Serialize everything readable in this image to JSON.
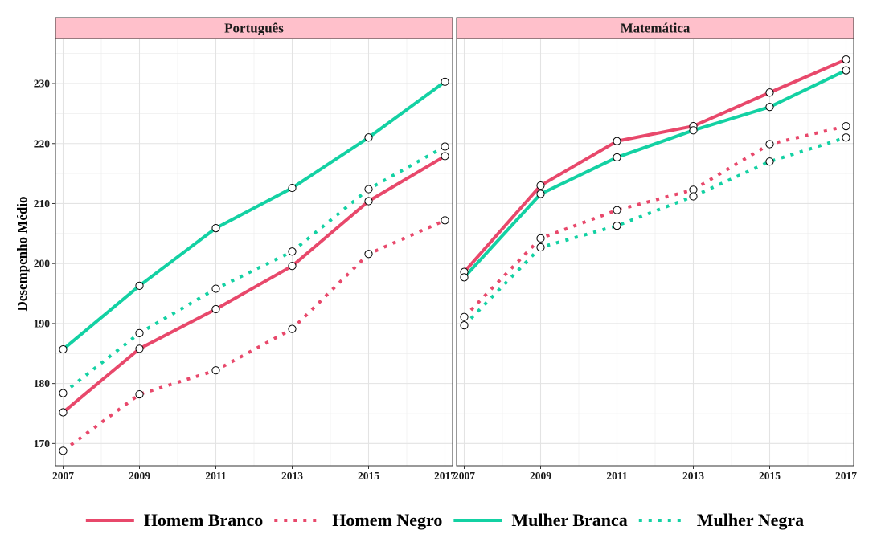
{
  "chart_data": {
    "type": "line",
    "ylabel": "Desempenho Médio",
    "xlabel": "",
    "x": [
      2007,
      2009,
      2011,
      2013,
      2015,
      2017
    ],
    "x_ticks": [
      "2007",
      "2009",
      "2011",
      "2013",
      "2015",
      "2017"
    ],
    "y_ticks": [
      "170",
      "180",
      "190",
      "200",
      "210",
      "220",
      "230"
    ],
    "xlim": [
      2006.8,
      2017.2
    ],
    "ylim": [
      166.3,
      237.5
    ],
    "grid": true,
    "legend_position": "bottom",
    "panels": [
      {
        "title": "Português",
        "series": [
          {
            "name": "Homem Branco",
            "values": [
              175.2,
              185.8,
              192.4,
              199.6,
              210.4,
              217.9
            ]
          },
          {
            "name": "Homem Negro",
            "values": [
              168.8,
              178.2,
              182.2,
              189.1,
              201.6,
              207.2
            ]
          },
          {
            "name": "Mulher Branca",
            "values": [
              185.7,
              196.3,
              205.9,
              212.6,
              221.0,
              230.3
            ]
          },
          {
            "name": "Mulher Negra",
            "values": [
              178.4,
              188.4,
              195.8,
              202.0,
              212.4,
              219.5
            ]
          }
        ]
      },
      {
        "title": "Matemática",
        "series": [
          {
            "name": "Homem Branco",
            "values": [
              198.6,
              213.0,
              220.4,
              222.9,
              228.5,
              234.0
            ]
          },
          {
            "name": "Homem Negro",
            "values": [
              191.1,
              204.2,
              208.9,
              212.3,
              219.9,
              222.9
            ]
          },
          {
            "name": "Mulher Branca",
            "values": [
              197.7,
              211.6,
              217.7,
              222.2,
              226.1,
              232.2
            ]
          },
          {
            "name": "Mulher Negra",
            "values": [
              189.7,
              202.7,
              206.3,
              211.2,
              217.0,
              221.0
            ]
          }
        ]
      }
    ],
    "series_styles": [
      {
        "name": "Homem Branco",
        "color": "#e8486b",
        "dash": "solid"
      },
      {
        "name": "Homem Negro",
        "color": "#e8486b",
        "dash": "dotted"
      },
      {
        "name": "Mulher Branca",
        "color": "#13d1a3",
        "dash": "solid"
      },
      {
        "name": "Mulher Negra",
        "color": "#13d1a3",
        "dash": "dotted"
      }
    ],
    "strip_color": "#ffc0cb",
    "legend": [
      "Homem Branco",
      "Homem Negro",
      "Mulher Branca",
      "Mulher Negra"
    ]
  }
}
